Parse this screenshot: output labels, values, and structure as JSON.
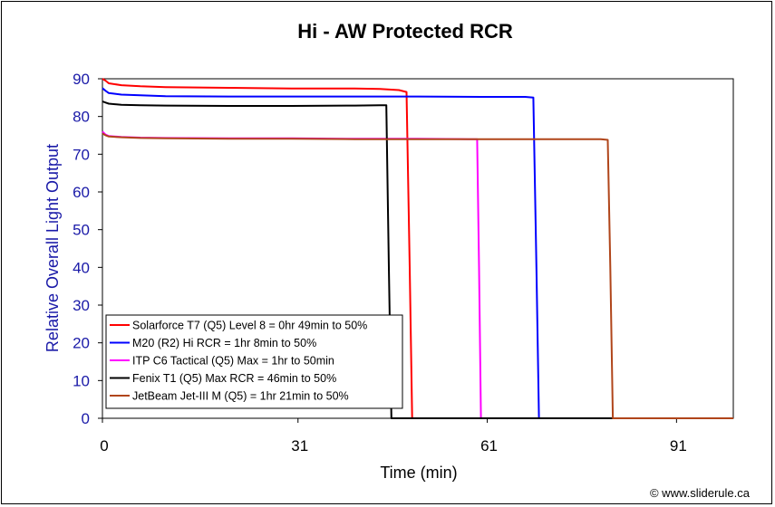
{
  "chart_data": {
    "type": "line",
    "title": "Hi - AW Protected RCR",
    "xlabel": "Time (min)",
    "ylabel": "Relative Overall Light Output",
    "xlim": [
      0,
      100
    ],
    "ylim": [
      0,
      90
    ],
    "x_ticks": [
      0,
      31,
      61,
      91
    ],
    "y_ticks": [
      0,
      10,
      20,
      30,
      40,
      50,
      60,
      70,
      80,
      90
    ],
    "grid": false,
    "legend_position": "bottom-left",
    "series": [
      {
        "name": "Solarforce T7 (Q5) Level 8 = 0hr 49min to 50%",
        "color": "#ff0000",
        "x": [
          0,
          0.5,
          1,
          3,
          6,
          10,
          20,
          30,
          40,
          44,
          47,
          48.2,
          48.7,
          49.1,
          49.4,
          100
        ],
        "y": [
          90,
          89.5,
          88.8,
          88.3,
          88,
          87.8,
          87.6,
          87.4,
          87.4,
          87.3,
          87,
          86.5,
          40,
          0,
          0,
          0
        ]
      },
      {
        "name": "M20 (R2) Hi RCR = 1hr 8min to 50%",
        "color": "#0000ff",
        "x": [
          0,
          0.5,
          1,
          3,
          6,
          10,
          20,
          30,
          40,
          50,
          60,
          67,
          68.3,
          68.8,
          69.2,
          100
        ],
        "y": [
          87.5,
          86.8,
          86.2,
          85.8,
          85.6,
          85.4,
          85.3,
          85.3,
          85.3,
          85.3,
          85.2,
          85.2,
          85,
          40,
          0,
          0
        ]
      },
      {
        "name": "ITP C6 Tactical (Q5) Max = 1hr to 50min",
        "color": "#ff00ff",
        "x": [
          0,
          0.5,
          1,
          3,
          6,
          10,
          20,
          30,
          40,
          50,
          58,
          59.4,
          59.7,
          60,
          100
        ],
        "y": [
          76,
          75.2,
          74.8,
          74.6,
          74.4,
          74.3,
          74.2,
          74.2,
          74.1,
          74.1,
          74,
          74,
          40,
          0,
          0
        ]
      },
      {
        "name": "Fenix T1 (Q5) Max RCR = 46min to 50%",
        "color": "#000000",
        "x": [
          0,
          0.5,
          1,
          3,
          6,
          10,
          20,
          30,
          40,
          44,
          45,
          45.4,
          45.8,
          100
        ],
        "y": [
          84,
          83.7,
          83.4,
          83.1,
          83,
          82.9,
          82.8,
          82.8,
          82.9,
          83,
          83,
          40,
          0,
          0
        ]
      },
      {
        "name": "JetBeam Jet-III M (Q5) = 1hr 21min to 50%",
        "color": "#b0451a",
        "x": [
          0,
          0.5,
          1,
          3,
          6,
          10,
          20,
          30,
          40,
          50,
          60,
          70,
          79,
          80.1,
          80.5,
          80.9,
          100
        ],
        "y": [
          75.5,
          75,
          74.7,
          74.5,
          74.3,
          74.2,
          74.1,
          74.1,
          74,
          74,
          74,
          74,
          74,
          73.8,
          40,
          0,
          0
        ]
      }
    ]
  },
  "credit": "© www.sliderule.ca"
}
